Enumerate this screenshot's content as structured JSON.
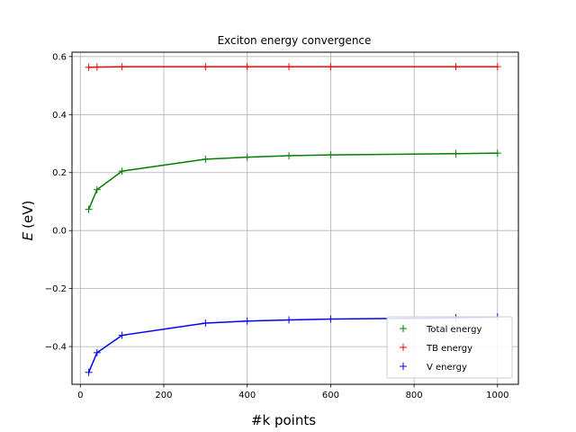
{
  "chart_data": {
    "type": "line",
    "title": "Exciton energy convergence",
    "xlabel": "#k points",
    "ylabel_var": "E",
    "ylabel_unit": "(eV)",
    "xlim": [
      -20,
      1050
    ],
    "ylim": [
      -0.53,
      0.615
    ],
    "xticks": [
      0,
      200,
      400,
      600,
      800,
      1000
    ],
    "yticks": [
      -0.4,
      -0.2,
      0.0,
      0.2,
      0.4,
      0.6
    ],
    "xtick_labels": [
      "0",
      "200",
      "400",
      "600",
      "800",
      "1000"
    ],
    "ytick_labels": [
      "−0.4",
      "−0.2",
      "0.0",
      "0.2",
      "0.4",
      "0.6"
    ],
    "grid": true,
    "legend_position": "lower-right",
    "series": [
      {
        "name": "Total energy",
        "color": "#008000",
        "x": [
          20,
          40,
          100,
          300,
          400,
          500,
          600,
          900,
          1000
        ],
        "y": [
          0.073,
          0.141,
          0.205,
          0.246,
          0.253,
          0.258,
          0.261,
          0.265,
          0.267
        ]
      },
      {
        "name": "TB energy",
        "color": "#ff0000",
        "x": [
          20,
          40,
          100,
          300,
          400,
          500,
          600,
          900,
          1000
        ],
        "y": [
          0.563,
          0.564,
          0.565,
          0.565,
          0.565,
          0.565,
          0.565,
          0.565,
          0.565
        ]
      },
      {
        "name": "V energy",
        "color": "#0000ff",
        "x": [
          20,
          40,
          100,
          300,
          400,
          500,
          600,
          900,
          1000
        ],
        "y": [
          -0.489,
          -0.421,
          -0.361,
          -0.319,
          -0.312,
          -0.308,
          -0.305,
          -0.301,
          -0.298
        ]
      }
    ]
  }
}
